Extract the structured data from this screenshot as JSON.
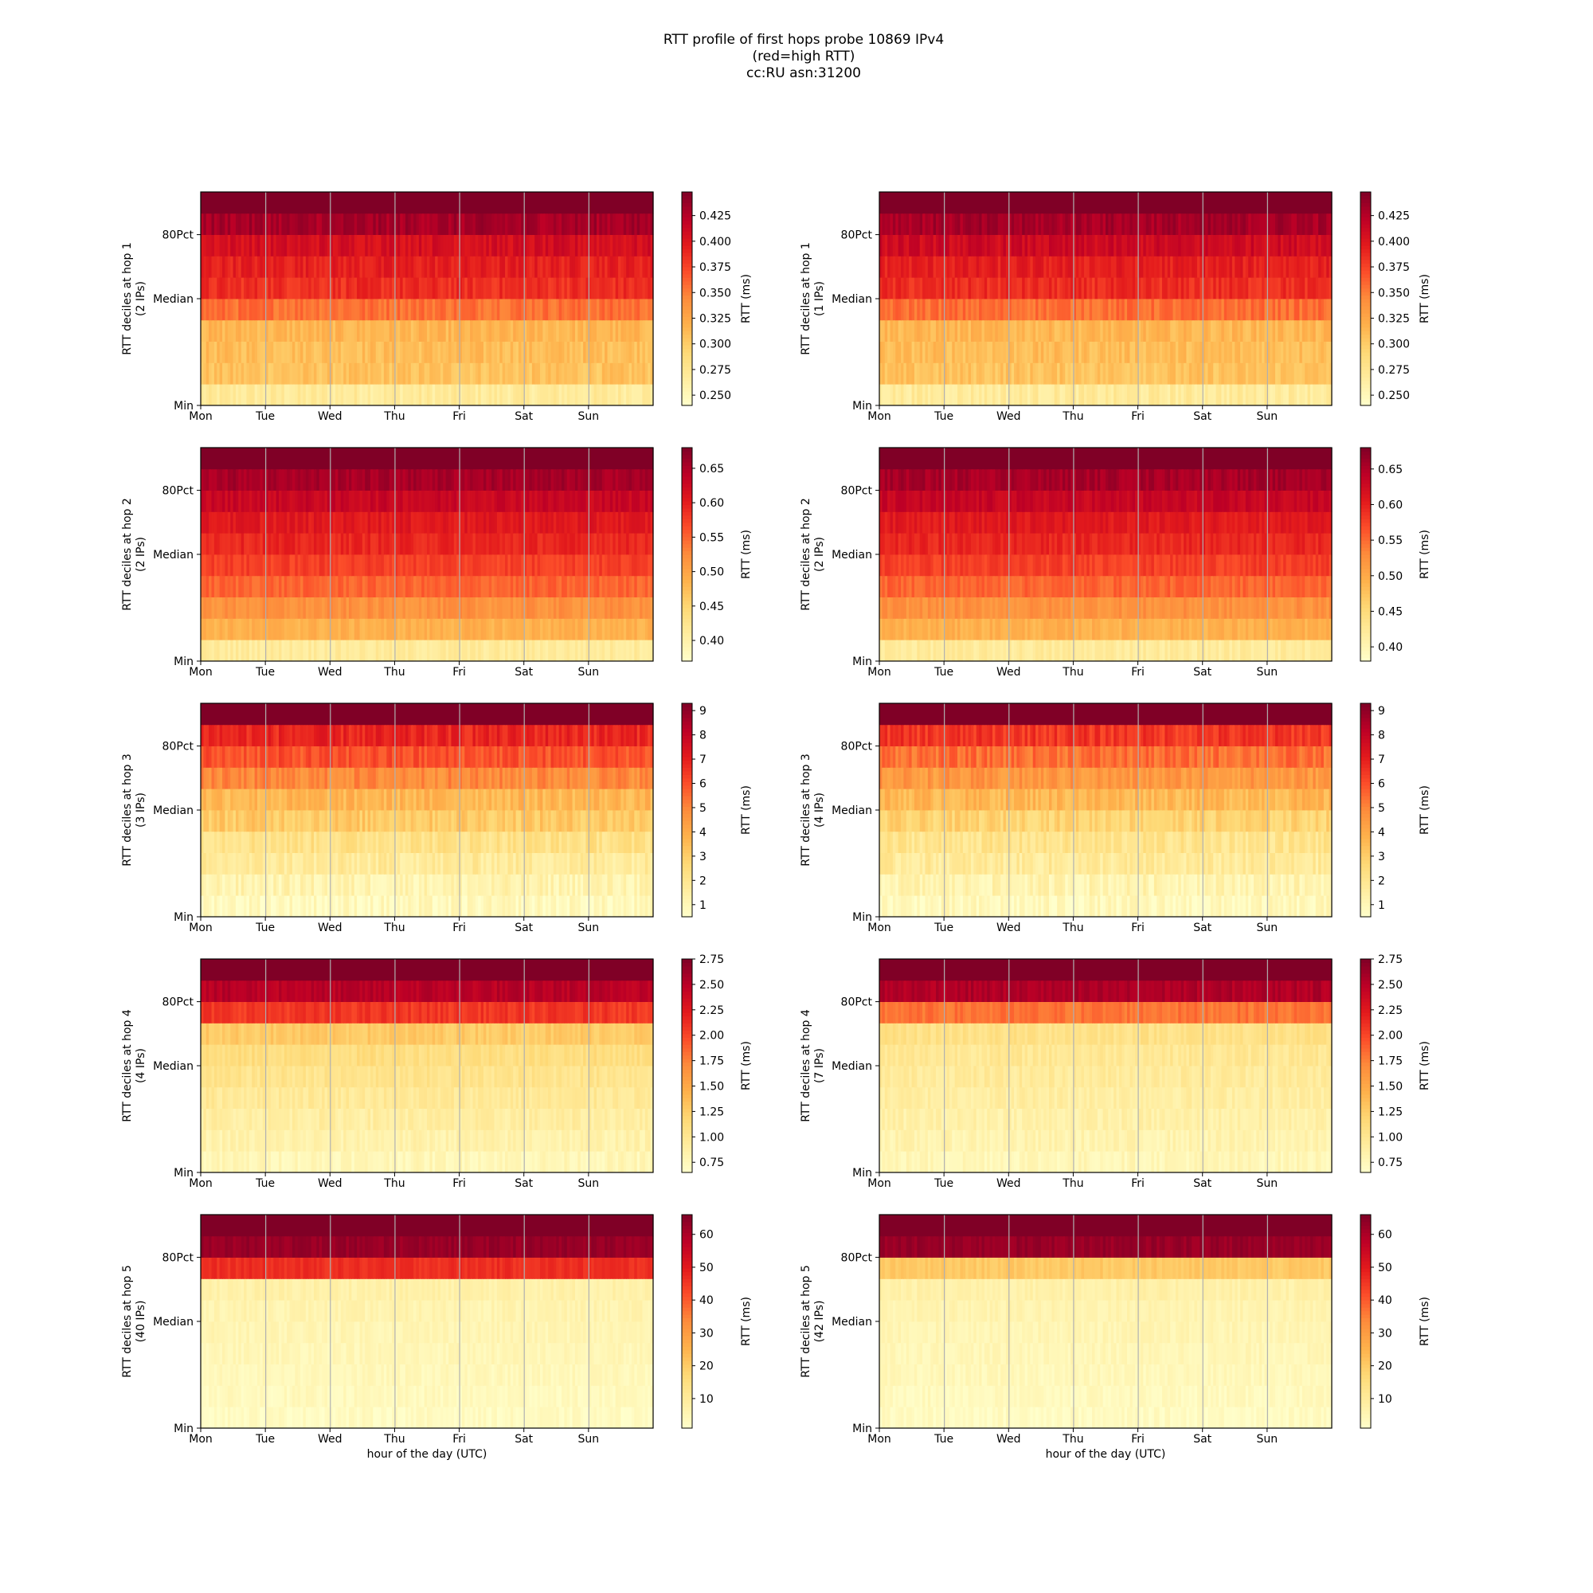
{
  "figure": {
    "title_lines": [
      "RTT profile of first hops probe 10869 IPv4",
      "(red=high RTT)",
      "cc:RU asn:31200"
    ]
  },
  "chart_data": [
    {
      "type": "heatmap",
      "hop": 1,
      "column": "left",
      "ylabel": "RTT deciles at hop 1",
      "ylabel_sub": "(2 IPs)",
      "xlabel": "",
      "x_ticks": [
        "Mon",
        "Tue",
        "Wed",
        "Thu",
        "Fri",
        "Sat",
        "Sun"
      ],
      "y_ticks": [
        "Min",
        "Median",
        "80Pct"
      ],
      "colorbar": {
        "label": "RTT (ms)",
        "range": [
          0.24,
          0.448
        ],
        "ticks": [
          0.25,
          0.275,
          0.3,
          0.325,
          0.35,
          0.375,
          0.4,
          0.425
        ],
        "tick_labels": [
          "0.250",
          "0.275",
          "0.300",
          "0.325",
          "0.350",
          "0.375",
          "0.400",
          "0.425"
        ]
      },
      "colormap": "YlOrRd",
      "decile_levels": [
        0.14,
        0.32,
        0.34,
        0.36,
        0.56,
        0.7,
        0.74,
        0.8,
        0.92,
        1.0
      ],
      "noise": 0.05,
      "grid": "x"
    },
    {
      "type": "heatmap",
      "hop": 1,
      "column": "right",
      "ylabel": "RTT deciles at hop 1",
      "ylabel_sub": "(1 IPs)",
      "xlabel": "",
      "x_ticks": [
        "Mon",
        "Tue",
        "Wed",
        "Thu",
        "Fri",
        "Sat",
        "Sun"
      ],
      "y_ticks": [
        "Min",
        "Median",
        "80Pct"
      ],
      "colorbar": {
        "label": "RTT (ms)",
        "range": [
          0.24,
          0.448
        ],
        "ticks": [
          0.25,
          0.275,
          0.3,
          0.325,
          0.35,
          0.375,
          0.4,
          0.425
        ],
        "tick_labels": [
          "0.250",
          "0.275",
          "0.300",
          "0.325",
          "0.350",
          "0.375",
          "0.400",
          "0.425"
        ]
      },
      "colormap": "YlOrRd",
      "decile_levels": [
        0.14,
        0.32,
        0.34,
        0.36,
        0.56,
        0.7,
        0.74,
        0.82,
        0.92,
        1.0
      ],
      "noise": 0.05,
      "grid": "x"
    },
    {
      "type": "heatmap",
      "hop": 2,
      "column": "left",
      "ylabel": "RTT deciles at hop 2",
      "ylabel_sub": "(2 IPs)",
      "xlabel": "",
      "x_ticks": [
        "Mon",
        "Tue",
        "Wed",
        "Thu",
        "Fri",
        "Sat",
        "Sun"
      ],
      "y_ticks": [
        "Min",
        "Median",
        "80Pct"
      ],
      "colorbar": {
        "label": "RTT (ms)",
        "range": [
          0.37,
          0.68
        ],
        "ticks": [
          0.4,
          0.45,
          0.5,
          0.55,
          0.6,
          0.65
        ],
        "tick_labels": [
          "0.40",
          "0.45",
          "0.50",
          "0.55",
          "0.60",
          "0.65"
        ]
      },
      "colormap": "YlOrRd",
      "decile_levels": [
        0.14,
        0.38,
        0.48,
        0.58,
        0.66,
        0.72,
        0.76,
        0.84,
        0.92,
        1.0
      ],
      "noise": 0.04,
      "grid": "x"
    },
    {
      "type": "heatmap",
      "hop": 2,
      "column": "right",
      "ylabel": "RTT deciles at hop 2",
      "ylabel_sub": "(2 IPs)",
      "xlabel": "",
      "x_ticks": [
        "Mon",
        "Tue",
        "Wed",
        "Thu",
        "Fri",
        "Sat",
        "Sun"
      ],
      "y_ticks": [
        "Min",
        "Median",
        "80Pct"
      ],
      "colorbar": {
        "label": "RTT (ms)",
        "range": [
          0.38,
          0.68
        ],
        "ticks": [
          0.4,
          0.45,
          0.5,
          0.55,
          0.6,
          0.65
        ],
        "tick_labels": [
          "0.40",
          "0.45",
          "0.50",
          "0.55",
          "0.60",
          "0.65"
        ]
      },
      "colormap": "YlOrRd",
      "decile_levels": [
        0.14,
        0.38,
        0.48,
        0.58,
        0.66,
        0.72,
        0.76,
        0.84,
        0.92,
        1.0
      ],
      "noise": 0.04,
      "grid": "x"
    },
    {
      "type": "heatmap",
      "hop": 3,
      "column": "left",
      "ylabel": "RTT deciles at hop 3",
      "ylabel_sub": "(3 IPs)",
      "xlabel": "",
      "x_ticks": [
        "Mon",
        "Tue",
        "Wed",
        "Thu",
        "Fri",
        "Sat",
        "Sun"
      ],
      "y_ticks": [
        "Min",
        "Median",
        "80Pct"
      ],
      "colorbar": {
        "label": "RTT (ms)",
        "range": [
          0.5,
          9.3
        ],
        "ticks": [
          1,
          2,
          3,
          4,
          5,
          6,
          7,
          8,
          9
        ],
        "tick_labels": [
          "1",
          "2",
          "3",
          "4",
          "5",
          "6",
          "7",
          "8",
          "9"
        ]
      },
      "colormap": "YlOrRd",
      "decile_levels": [
        0.04,
        0.08,
        0.14,
        0.2,
        0.3,
        0.36,
        0.5,
        0.62,
        0.72,
        1.0
      ],
      "noise": 0.06,
      "grid": "x"
    },
    {
      "type": "heatmap",
      "hop": 3,
      "column": "right",
      "ylabel": "RTT deciles at hop 3",
      "ylabel_sub": "(4 IPs)",
      "xlabel": "",
      "x_ticks": [
        "Mon",
        "Tue",
        "Wed",
        "Thu",
        "Fri",
        "Sat",
        "Sun"
      ],
      "y_ticks": [
        "Min",
        "Median",
        "80Pct"
      ],
      "colorbar": {
        "label": "RTT (ms)",
        "range": [
          0.5,
          9.3
        ],
        "ticks": [
          1,
          2,
          3,
          4,
          5,
          6,
          7,
          8,
          9
        ],
        "tick_labels": [
          "1",
          "2",
          "3",
          "4",
          "5",
          "6",
          "7",
          "8",
          "9"
        ]
      },
      "colormap": "YlOrRd",
      "decile_levels": [
        0.04,
        0.08,
        0.14,
        0.18,
        0.26,
        0.36,
        0.46,
        0.56,
        0.68,
        1.0
      ],
      "noise": 0.06,
      "grid": "x"
    },
    {
      "type": "heatmap",
      "hop": 4,
      "column": "left",
      "ylabel": "RTT deciles at hop 4",
      "ylabel_sub": "(4 IPs)",
      "xlabel": "",
      "x_ticks": [
        "Mon",
        "Tue",
        "Wed",
        "Thu",
        "Fri",
        "Sat",
        "Sun"
      ],
      "y_ticks": [
        "Min",
        "Median",
        "80Pct"
      ],
      "colorbar": {
        "label": "RTT (ms)",
        "range": [
          0.65,
          2.75
        ],
        "ticks": [
          0.75,
          1.0,
          1.25,
          1.5,
          1.75,
          2.0,
          2.25,
          2.5,
          2.75
        ],
        "tick_labels": [
          "0.75",
          "1.00",
          "1.25",
          "1.50",
          "1.75",
          "2.00",
          "2.25",
          "2.50",
          "2.75"
        ]
      },
      "colormap": "YlOrRd",
      "decile_levels": [
        0.06,
        0.09,
        0.12,
        0.15,
        0.18,
        0.22,
        0.3,
        0.68,
        0.88,
        1.0
      ],
      "noise": 0.04,
      "grid": "x"
    },
    {
      "type": "heatmap",
      "hop": 4,
      "column": "right",
      "ylabel": "RTT deciles at hop 4",
      "ylabel_sub": "(7 IPs)",
      "xlabel": "",
      "x_ticks": [
        "Mon",
        "Tue",
        "Wed",
        "Thu",
        "Fri",
        "Sat",
        "Sun"
      ],
      "y_ticks": [
        "Min",
        "Median",
        "80Pct"
      ],
      "colorbar": {
        "label": "RTT (ms)",
        "range": [
          0.65,
          2.75
        ],
        "ticks": [
          0.75,
          1.0,
          1.25,
          1.5,
          1.75,
          2.0,
          2.25,
          2.5,
          2.75
        ],
        "tick_labels": [
          "0.75",
          "1.00",
          "1.25",
          "1.50",
          "1.75",
          "2.00",
          "2.25",
          "2.50",
          "2.75"
        ]
      },
      "colormap": "YlOrRd",
      "decile_levels": [
        0.06,
        0.08,
        0.1,
        0.12,
        0.14,
        0.16,
        0.2,
        0.55,
        0.9,
        1.0
      ],
      "noise": 0.04,
      "grid": "x"
    },
    {
      "type": "heatmap",
      "hop": 5,
      "column": "left",
      "ylabel": "RTT deciles at hop 5",
      "ylabel_sub": "(40 IPs)",
      "xlabel": "hour of the day (UTC)",
      "x_ticks": [
        "Mon",
        "Tue",
        "Wed",
        "Thu",
        "Fri",
        "Sat",
        "Sun"
      ],
      "y_ticks": [
        "Min",
        "Median",
        "80Pct"
      ],
      "colorbar": {
        "label": "RTT (ms)",
        "range": [
          1,
          66
        ],
        "ticks": [
          10,
          20,
          30,
          40,
          50,
          60
        ],
        "tick_labels": [
          "10",
          "20",
          "30",
          "40",
          "50",
          "60"
        ]
      },
      "colormap": "YlOrRd",
      "decile_levels": [
        0.03,
        0.04,
        0.05,
        0.06,
        0.07,
        0.08,
        0.1,
        0.7,
        0.95,
        1.0
      ],
      "noise": 0.03,
      "grid": "x"
    },
    {
      "type": "heatmap",
      "hop": 5,
      "column": "right",
      "ylabel": "RTT deciles at hop 5",
      "ylabel_sub": "(42 IPs)",
      "xlabel": "hour of the day (UTC)",
      "x_ticks": [
        "Mon",
        "Tue",
        "Wed",
        "Thu",
        "Fri",
        "Sat",
        "Sun"
      ],
      "y_ticks": [
        "Min",
        "Median",
        "80Pct"
      ],
      "colorbar": {
        "label": "RTT (ms)",
        "range": [
          1,
          66
        ],
        "ticks": [
          10,
          20,
          30,
          40,
          50,
          60
        ],
        "tick_labels": [
          "10",
          "20",
          "30",
          "40",
          "50",
          "60"
        ]
      },
      "colormap": "YlOrRd",
      "decile_levels": [
        0.03,
        0.04,
        0.05,
        0.06,
        0.07,
        0.08,
        0.1,
        0.3,
        0.95,
        1.0
      ],
      "noise": 0.03,
      "grid": "x"
    }
  ]
}
